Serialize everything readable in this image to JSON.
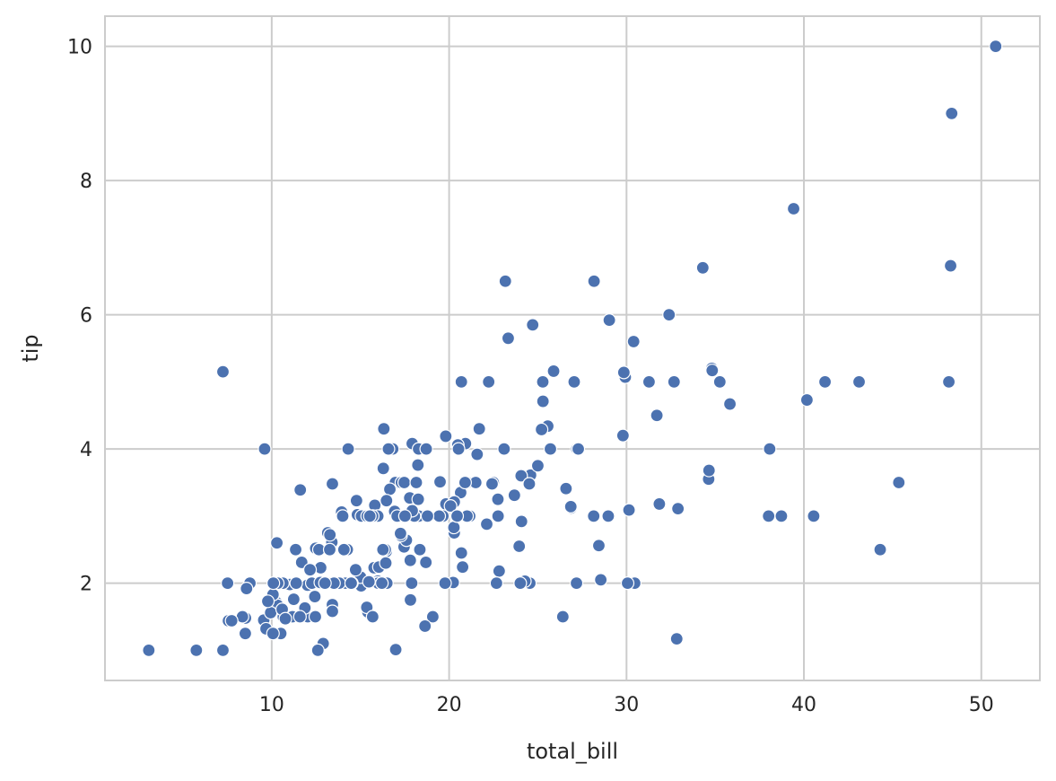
{
  "chart_data": {
    "type": "scatter",
    "xlabel": "total_bill",
    "ylabel": "tip",
    "xlim": [
      0.6,
      53.3
    ],
    "ylim": [
      0.55,
      10.45
    ],
    "x_ticks": [
      10,
      20,
      30,
      40,
      50
    ],
    "y_ticks": [
      2,
      4,
      6,
      8,
      10
    ],
    "x_tick_labels": [
      "10",
      "20",
      "30",
      "40",
      "50"
    ],
    "y_tick_labels": [
      "2",
      "4",
      "6",
      "8",
      "10"
    ],
    "grid": true,
    "series": [
      {
        "color": "#4c72b0",
        "points": [
          [
            16.99,
            1.01
          ],
          [
            10.34,
            1.66
          ],
          [
            21.01,
            3.5
          ],
          [
            23.68,
            3.31
          ],
          [
            24.59,
            3.61
          ],
          [
            25.29,
            4.71
          ],
          [
            8.77,
            2.0
          ],
          [
            26.88,
            3.12
          ],
          [
            15.04,
            1.96
          ],
          [
            14.78,
            3.23
          ],
          [
            10.27,
            1.71
          ],
          [
            35.26,
            5.0
          ],
          [
            15.42,
            1.57
          ],
          [
            18.43,
            3.0
          ],
          [
            14.83,
            3.02
          ],
          [
            21.58,
            3.92
          ],
          [
            10.33,
            1.67
          ],
          [
            16.29,
            3.71
          ],
          [
            16.97,
            3.5
          ],
          [
            20.65,
            3.35
          ],
          [
            17.92,
            4.08
          ],
          [
            20.29,
            2.75
          ],
          [
            15.77,
            2.23
          ],
          [
            39.42,
            7.58
          ],
          [
            19.82,
            3.18
          ],
          [
            17.81,
            2.34
          ],
          [
            13.37,
            2.0
          ],
          [
            12.69,
            2.0
          ],
          [
            21.7,
            4.3
          ],
          [
            19.65,
            3.0
          ],
          [
            9.55,
            1.45
          ],
          [
            18.35,
            2.5
          ],
          [
            15.06,
            3.0
          ],
          [
            20.69,
            2.45
          ],
          [
            17.78,
            3.27
          ],
          [
            24.06,
            3.6
          ],
          [
            16.31,
            2.0
          ],
          [
            16.93,
            3.07
          ],
          [
            18.69,
            2.31
          ],
          [
            31.27,
            5.0
          ],
          [
            16.04,
            2.24
          ],
          [
            17.46,
            2.54
          ],
          [
            13.94,
            3.06
          ],
          [
            9.68,
            1.32
          ],
          [
            30.4,
            5.6
          ],
          [
            18.29,
            3.0
          ],
          [
            22.23,
            5.0
          ],
          [
            32.4,
            6.0
          ],
          [
            28.55,
            2.05
          ],
          [
            18.04,
            3.0
          ],
          [
            12.54,
            2.5
          ],
          [
            10.29,
            2.6
          ],
          [
            34.81,
            5.2
          ],
          [
            9.94,
            1.56
          ],
          [
            25.56,
            4.34
          ],
          [
            19.49,
            3.51
          ],
          [
            38.01,
            3.0
          ],
          [
            26.41,
            1.5
          ],
          [
            11.24,
            1.76
          ],
          [
            48.27,
            6.73
          ],
          [
            20.29,
            3.21
          ],
          [
            13.81,
            2.0
          ],
          [
            11.02,
            1.98
          ],
          [
            18.29,
            3.76
          ],
          [
            17.59,
            2.64
          ],
          [
            20.08,
            3.15
          ],
          [
            16.45,
            2.47
          ],
          [
            3.07,
            1.0
          ],
          [
            20.23,
            2.01
          ],
          [
            15.01,
            2.09
          ],
          [
            12.02,
            1.97
          ],
          [
            17.07,
            3.0
          ],
          [
            26.86,
            3.14
          ],
          [
            25.28,
            5.0
          ],
          [
            14.73,
            2.2
          ],
          [
            10.51,
            1.25
          ],
          [
            17.92,
            3.08
          ],
          [
            27.2,
            4.0
          ],
          [
            22.76,
            3.0
          ],
          [
            17.29,
            2.71
          ],
          [
            19.44,
            3.0
          ],
          [
            16.66,
            3.4
          ],
          [
            10.07,
            1.83
          ],
          [
            32.68,
            5.0
          ],
          [
            15.98,
            2.03
          ],
          [
            34.83,
            5.17
          ],
          [
            13.03,
            2.0
          ],
          [
            18.28,
            4.0
          ],
          [
            24.71,
            5.85
          ],
          [
            21.16,
            3.0
          ],
          [
            28.97,
            3.0
          ],
          [
            22.49,
            3.5
          ],
          [
            5.75,
            1.0
          ],
          [
            16.32,
            4.3
          ],
          [
            22.75,
            3.25
          ],
          [
            40.17,
            4.73
          ],
          [
            27.28,
            4.0
          ],
          [
            12.03,
            1.5
          ],
          [
            21.01,
            3.0
          ],
          [
            12.46,
            1.5
          ],
          [
            11.35,
            2.5
          ],
          [
            15.38,
            3.0
          ],
          [
            44.3,
            2.5
          ],
          [
            22.42,
            3.48
          ],
          [
            20.92,
            4.08
          ],
          [
            15.36,
            1.64
          ],
          [
            20.49,
            4.06
          ],
          [
            25.21,
            4.29
          ],
          [
            18.24,
            3.76
          ],
          [
            14.31,
            4.0
          ],
          [
            14.0,
            3.0
          ],
          [
            7.25,
            1.0
          ],
          [
            38.07,
            4.0
          ],
          [
            23.95,
            2.55
          ],
          [
            25.71,
            4.0
          ],
          [
            17.31,
            3.5
          ],
          [
            29.93,
            5.07
          ],
          [
            10.65,
            1.5
          ],
          [
            12.43,
            1.8
          ],
          [
            24.08,
            2.92
          ],
          [
            11.69,
            2.31
          ],
          [
            13.42,
            1.68
          ],
          [
            14.26,
            2.5
          ],
          [
            15.95,
            2.0
          ],
          [
            12.48,
            2.52
          ],
          [
            29.8,
            4.2
          ],
          [
            8.52,
            1.48
          ],
          [
            14.52,
            2.0
          ],
          [
            11.38,
            2.0
          ],
          [
            22.82,
            2.18
          ],
          [
            19.08,
            1.5
          ],
          [
            20.27,
            2.83
          ],
          [
            11.17,
            1.5
          ],
          [
            12.26,
            2.0
          ],
          [
            18.26,
            3.25
          ],
          [
            8.51,
            1.25
          ],
          [
            10.33,
            2.0
          ],
          [
            14.15,
            2.0
          ],
          [
            16.0,
            2.0
          ],
          [
            13.16,
            2.75
          ],
          [
            17.47,
            3.5
          ],
          [
            34.3,
            6.7
          ],
          [
            41.19,
            5.0
          ],
          [
            27.05,
            5.0
          ],
          [
            16.43,
            2.3
          ],
          [
            8.35,
            1.5
          ],
          [
            18.64,
            1.36
          ],
          [
            11.87,
            1.63
          ],
          [
            9.78,
            1.73
          ],
          [
            7.51,
            2.0
          ],
          [
            14.07,
            2.5
          ],
          [
            13.13,
            2.0
          ],
          [
            17.26,
            2.74
          ],
          [
            24.55,
            2.0
          ],
          [
            19.77,
            2.0
          ],
          [
            29.85,
            5.14
          ],
          [
            48.17,
            5.0
          ],
          [
            25.0,
            3.75
          ],
          [
            13.39,
            2.61
          ],
          [
            16.49,
            2.0
          ],
          [
            21.5,
            3.5
          ],
          [
            12.66,
            2.5
          ],
          [
            16.21,
            2.0
          ],
          [
            13.81,
            2.0
          ],
          [
            17.51,
            3.0
          ],
          [
            24.52,
            3.48
          ],
          [
            20.76,
            2.24
          ],
          [
            31.71,
            4.5
          ],
          [
            10.59,
            1.61
          ],
          [
            10.63,
            2.0
          ],
          [
            50.81,
            10.0
          ],
          [
            15.81,
            3.16
          ],
          [
            7.25,
            5.15
          ],
          [
            31.85,
            3.18
          ],
          [
            16.82,
            4.0
          ],
          [
            32.9,
            3.11
          ],
          [
            17.89,
            2.0
          ],
          [
            14.48,
            2.0
          ],
          [
            9.6,
            4.0
          ],
          [
            34.63,
            3.55
          ],
          [
            34.65,
            3.68
          ],
          [
            23.33,
            5.65
          ],
          [
            45.35,
            3.5
          ],
          [
            23.17,
            6.5
          ],
          [
            40.55,
            3.0
          ],
          [
            20.69,
            5.0
          ],
          [
            20.9,
            3.5
          ],
          [
            30.46,
            2.0
          ],
          [
            18.15,
            3.5
          ],
          [
            23.1,
            4.0
          ],
          [
            15.69,
            1.5
          ],
          [
            19.81,
            4.19
          ],
          [
            28.44,
            2.56
          ],
          [
            15.48,
            2.02
          ],
          [
            16.58,
            4.0
          ],
          [
            7.56,
            1.44
          ],
          [
            10.34,
            2.0
          ],
          [
            43.11,
            5.0
          ],
          [
            13.0,
            2.0
          ],
          [
            13.51,
            2.0
          ],
          [
            18.71,
            4.0
          ],
          [
            12.74,
            2.01
          ],
          [
            13.0,
            2.0
          ],
          [
            16.4,
            2.5
          ],
          [
            20.53,
            4.0
          ],
          [
            16.47,
            3.23
          ],
          [
            26.59,
            3.41
          ],
          [
            38.73,
            3.0
          ],
          [
            24.27,
            2.03
          ],
          [
            12.76,
            2.23
          ],
          [
            30.06,
            2.0
          ],
          [
            25.89,
            5.16
          ],
          [
            48.33,
            9.0
          ],
          [
            13.27,
            2.5
          ],
          [
            28.17,
            6.5
          ],
          [
            12.9,
            1.1
          ],
          [
            28.15,
            3.0
          ],
          [
            11.59,
            1.5
          ],
          [
            7.74,
            1.44
          ],
          [
            30.14,
            3.09
          ],
          [
            12.16,
            2.2
          ],
          [
            13.42,
            3.48
          ],
          [
            8.58,
            1.92
          ],
          [
            15.98,
            3.0
          ],
          [
            13.42,
            1.58
          ],
          [
            16.27,
            2.5
          ],
          [
            10.09,
            2.0
          ],
          [
            20.45,
            3.0
          ],
          [
            13.28,
            2.72
          ],
          [
            22.12,
            2.88
          ],
          [
            24.01,
            2.0
          ],
          [
            15.69,
            3.0
          ],
          [
            11.61,
            3.39
          ],
          [
            10.77,
            1.47
          ],
          [
            15.53,
            3.0
          ],
          [
            10.07,
            1.25
          ],
          [
            12.6,
            1.0
          ],
          [
            32.83,
            1.17
          ],
          [
            35.83,
            4.67
          ],
          [
            29.03,
            5.92
          ],
          [
            27.18,
            2.0
          ],
          [
            22.67,
            2.0
          ],
          [
            17.82,
            1.75
          ],
          [
            18.78,
            3.0
          ]
        ]
      }
    ]
  }
}
